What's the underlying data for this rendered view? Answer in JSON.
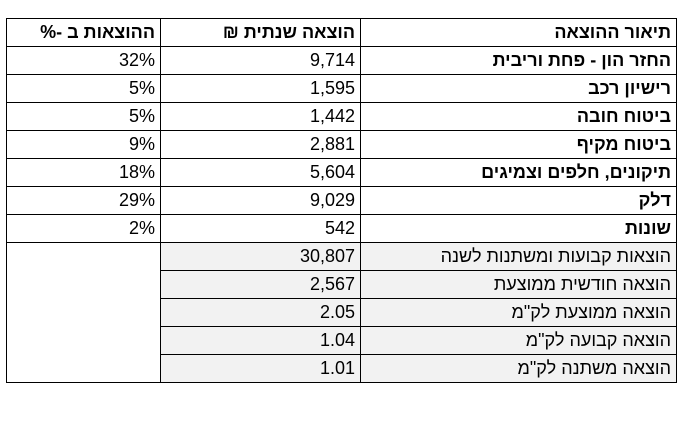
{
  "table": {
    "headers": {
      "description": "תיאור ההוצאה",
      "annual_amount": "הוצאה שנתית ₪",
      "percent": "ההוצאות ב -%"
    },
    "rows": [
      {
        "description": "החזר הון - פחת וריבית",
        "annual_amount": "9,714",
        "percent": "32%"
      },
      {
        "description": "רישיון רכב",
        "annual_amount": "1,595",
        "percent": "5%"
      },
      {
        "description": "ביטוח חובה",
        "annual_amount": "1,442",
        "percent": "5%"
      },
      {
        "description": "ביטוח מקיף",
        "annual_amount": "2,881",
        "percent": "9%"
      },
      {
        "description": "תיקונים, חלפים וצמיגים",
        "annual_amount": "5,604",
        "percent": "18%"
      },
      {
        "description": "דלק",
        "annual_amount": "9,029",
        "percent": "29%"
      },
      {
        "description": "שונות",
        "annual_amount": "542",
        "percent": "2%"
      }
    ],
    "summary": [
      {
        "description": "הוצאות קבועות ומשתנות לשנה",
        "value": "30,807"
      },
      {
        "description": "הוצאה חודשית ממוצעת",
        "value": "2,567"
      },
      {
        "description": "הוצאה ממוצעת לק\"מ",
        "value": "2.05"
      },
      {
        "description": "הוצאה קבועה לק\"מ",
        "value": "1.04"
      },
      {
        "description": "הוצאה משתנה לק\"מ",
        "value": "1.01"
      }
    ]
  }
}
